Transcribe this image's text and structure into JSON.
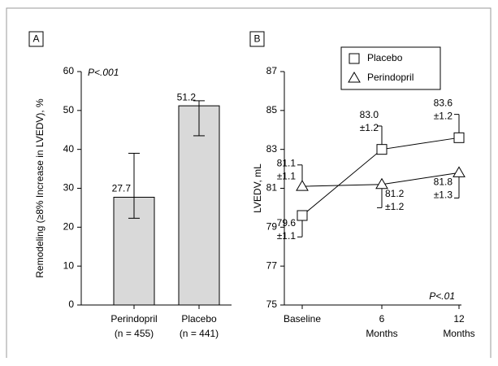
{
  "chart_data": [
    {
      "type": "bar",
      "panel_label": "A",
      "y_label": "Remodeling (≥8% Increase in LVEDV), %",
      "annotation": "P<.001",
      "categories": [
        [
          "Perindopril",
          "(n = 455)"
        ],
        [
          "Placebo",
          "(n = 441)"
        ]
      ],
      "values": [
        27.7,
        51.2
      ],
      "error_bars": [
        {
          "low": 22.3,
          "high": 39
        },
        {
          "low": 43.5,
          "high": 52.5
        }
      ],
      "color": "#d9d9d9",
      "ylim": [
        0,
        60
      ],
      "yticks": [
        0,
        10,
        20,
        30,
        40,
        50,
        60
      ]
    },
    {
      "type": "line",
      "panel_label": "B",
      "y_label": "LVEDV, mL",
      "annotation": "P<.01",
      "categories": [
        [
          "Baseline"
        ],
        [
          "6",
          "Months"
        ],
        [
          "12",
          "Months"
        ]
      ],
      "series": [
        {
          "name": "Placebo",
          "marker": "square",
          "color": "#000000",
          "values": [
            79.6,
            83.0,
            83.6
          ],
          "value_labels": [
            "79.6",
            "83.0",
            "83.6"
          ],
          "errors": [
            1.1,
            1.2,
            1.2
          ],
          "error_labels": [
            "±1.1",
            "±1.2",
            "±1.2"
          ],
          "error_side": [
            "down",
            "up",
            "up"
          ]
        },
        {
          "name": "Perindopril",
          "marker": "triangle",
          "color": "#000000",
          "values": [
            81.1,
            81.2,
            81.8
          ],
          "value_labels": [
            "81.1",
            "81.2",
            "81.8"
          ],
          "errors": [
            1.1,
            1.2,
            1.3
          ],
          "error_labels": [
            "±1.1",
            "±1.2",
            "±1.3"
          ],
          "error_side": [
            "up",
            "down",
            "down"
          ]
        }
      ],
      "ylim": [
        75,
        87
      ],
      "yticks": [
        75,
        77,
        79,
        81,
        83,
        85,
        87
      ]
    }
  ]
}
